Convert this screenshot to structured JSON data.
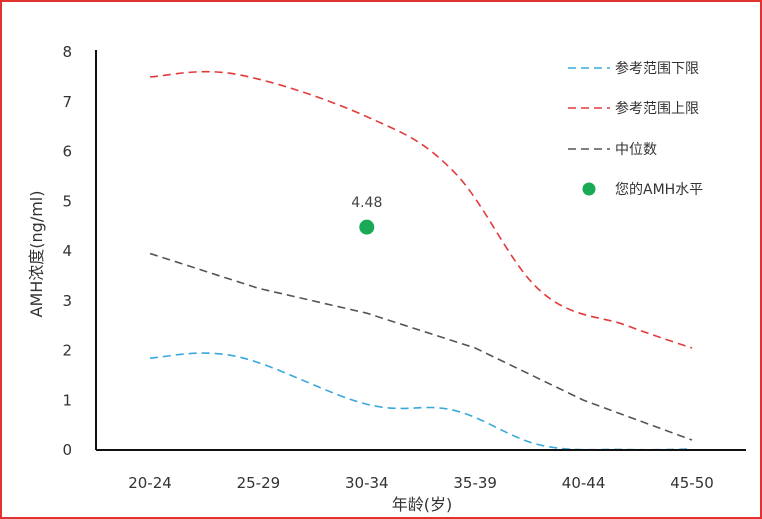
{
  "chart_data": {
    "type": "line",
    "title": "",
    "xlabel": "年龄(岁)",
    "ylabel": "AMH浓度(ng/ml)",
    "categories": [
      "20-24",
      "25-29",
      "30-34",
      "35-39",
      "40-44",
      "45-50"
    ],
    "ylim": [
      0,
      8
    ],
    "yticks": [
      0,
      1,
      2,
      3,
      4,
      5,
      6,
      7,
      8
    ],
    "grid": false,
    "legend_position": "top-right",
    "series": [
      {
        "name": "参考范围下限",
        "color": "#3aa8dc",
        "style": "dashed",
        "x": [
          0,
          0.8,
          2.0,
          2.8,
          3.6,
          4.4,
          5.0
        ],
        "values": [
          1.85,
          1.88,
          0.92,
          0.8,
          0.1,
          0.01,
          0.02
        ]
      },
      {
        "name": "参考范围上限",
        "color": "#e23a3a",
        "style": "dashed",
        "x": [
          0,
          0.8,
          2.0,
          2.8,
          3.6,
          4.4,
          5.0
        ],
        "values": [
          7.5,
          7.55,
          6.7,
          5.6,
          3.2,
          2.5,
          2.05
        ]
      },
      {
        "name": "中位数",
        "color": "#555555",
        "style": "dashed",
        "x": [
          0,
          1.0,
          2.0,
          3.0,
          4.0,
          5.0
        ],
        "values": [
          3.95,
          3.25,
          2.75,
          2.05,
          1.0,
          0.2
        ]
      }
    ],
    "marker": {
      "name": "您的AMH水平",
      "color": "#1aaa55",
      "x": 2.0,
      "value": 4.48,
      "label": "4.48"
    }
  }
}
